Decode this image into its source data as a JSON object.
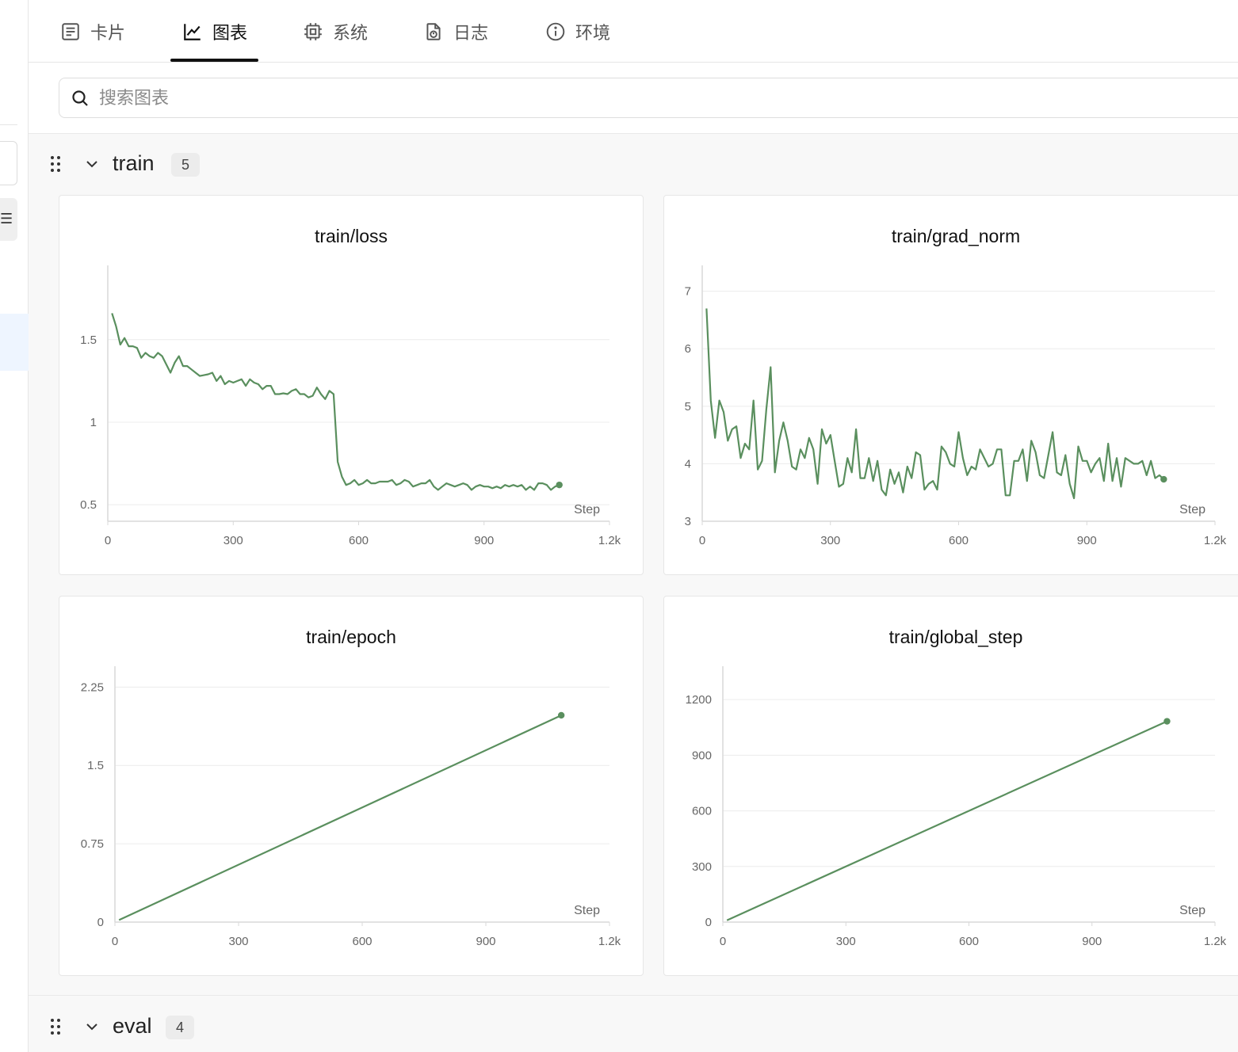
{
  "tabs": [
    {
      "label": "卡片",
      "icon": "card-icon"
    },
    {
      "label": "图表",
      "icon": "chart-icon",
      "active": true
    },
    {
      "label": "系统",
      "icon": "chip-icon"
    },
    {
      "label": "日志",
      "icon": "log-icon"
    },
    {
      "label": "环境",
      "icon": "info-icon"
    }
  ],
  "search": {
    "placeholder": "搜索图表"
  },
  "groups": [
    {
      "name": "train",
      "count": "5"
    },
    {
      "name": "eval",
      "count": "4"
    }
  ],
  "colors": {
    "line": "#5a8f5e",
    "grid": "#ececec",
    "axis": "#d9d9d9"
  },
  "chart_data": [
    {
      "type": "line",
      "title": "train/loss",
      "xlabel": "Step",
      "xlim": [
        0,
        1200
      ],
      "ylim": [
        0.4,
        1.95
      ],
      "xticks": [
        0,
        300,
        600,
        900,
        1200
      ],
      "xtick_labels": [
        "0",
        "300",
        "600",
        "900",
        "1.2k"
      ],
      "yticks": [
        0.5,
        1,
        1.5
      ],
      "ytick_labels": [
        "0.5",
        "1",
        "1.5"
      ],
      "series": [
        {
          "x": [
            10,
            20,
            30,
            40,
            50,
            60,
            70,
            80,
            90,
            100,
            110,
            120,
            130,
            140,
            150,
            160,
            170,
            180,
            190,
            200,
            210,
            220,
            230,
            240,
            250,
            260,
            270,
            280,
            290,
            300,
            310,
            320,
            330,
            340,
            350,
            360,
            370,
            380,
            390,
            400,
            410,
            420,
            430,
            440,
            450,
            460,
            470,
            480,
            490,
            500,
            510,
            520,
            530,
            540,
            550,
            560,
            570,
            580,
            590,
            600,
            610,
            620,
            630,
            640,
            650,
            660,
            670,
            680,
            690,
            700,
            710,
            720,
            730,
            740,
            750,
            760,
            770,
            780,
            790,
            800,
            810,
            820,
            830,
            840,
            850,
            860,
            870,
            880,
            890,
            900,
            910,
            920,
            930,
            940,
            950,
            960,
            970,
            980,
            990,
            1000,
            1010,
            1020,
            1030,
            1040,
            1050,
            1060,
            1070,
            1080
          ],
          "y": [
            1.66,
            1.58,
            1.47,
            1.51,
            1.46,
            1.46,
            1.45,
            1.39,
            1.42,
            1.4,
            1.39,
            1.42,
            1.4,
            1.35,
            1.3,
            1.36,
            1.4,
            1.34,
            1.34,
            1.32,
            1.3,
            1.28,
            1.285,
            1.29,
            1.3,
            1.25,
            1.28,
            1.23,
            1.25,
            1.24,
            1.25,
            1.26,
            1.22,
            1.26,
            1.24,
            1.23,
            1.2,
            1.22,
            1.22,
            1.17,
            1.17,
            1.175,
            1.17,
            1.19,
            1.2,
            1.17,
            1.17,
            1.15,
            1.16,
            1.21,
            1.17,
            1.14,
            1.19,
            1.17,
            0.76,
            0.67,
            0.62,
            0.63,
            0.65,
            0.62,
            0.63,
            0.65,
            0.63,
            0.63,
            0.64,
            0.64,
            0.64,
            0.65,
            0.62,
            0.63,
            0.65,
            0.64,
            0.61,
            0.62,
            0.63,
            0.63,
            0.65,
            0.61,
            0.59,
            0.61,
            0.63,
            0.62,
            0.61,
            0.62,
            0.63,
            0.62,
            0.59,
            0.61,
            0.62,
            0.61,
            0.61,
            0.6,
            0.61,
            0.6,
            0.62,
            0.61,
            0.62,
            0.61,
            0.62,
            0.59,
            0.61,
            0.59,
            0.63,
            0.63,
            0.62,
            0.59,
            0.61,
            0.62
          ]
        }
      ]
    },
    {
      "type": "line",
      "title": "train/grad_norm",
      "xlabel": "Step",
      "xlim": [
        0,
        1200
      ],
      "ylim": [
        3,
        7.45
      ],
      "xticks": [
        0,
        300,
        600,
        900,
        1200
      ],
      "xtick_labels": [
        "0",
        "300",
        "600",
        "900",
        "1.2k"
      ],
      "yticks": [
        3,
        4,
        5,
        6,
        7
      ],
      "ytick_labels": [
        "3",
        "4",
        "5",
        "6",
        "7"
      ],
      "series": [
        {
          "x": [
            10,
            20,
            30,
            40,
            50,
            60,
            70,
            80,
            90,
            100,
            110,
            120,
            130,
            140,
            150,
            160,
            170,
            180,
            190,
            200,
            210,
            220,
            230,
            240,
            250,
            260,
            270,
            280,
            290,
            300,
            310,
            320,
            330,
            340,
            350,
            360,
            370,
            380,
            390,
            400,
            410,
            420,
            430,
            440,
            450,
            460,
            470,
            480,
            490,
            500,
            510,
            520,
            530,
            540,
            550,
            560,
            570,
            580,
            590,
            600,
            610,
            620,
            630,
            640,
            650,
            660,
            670,
            680,
            690,
            700,
            710,
            720,
            730,
            740,
            750,
            760,
            770,
            780,
            790,
            800,
            810,
            820,
            830,
            840,
            850,
            860,
            870,
            880,
            890,
            900,
            910,
            920,
            930,
            940,
            950,
            960,
            970,
            980,
            990,
            1000,
            1010,
            1020,
            1030,
            1040,
            1050,
            1060,
            1070,
            1080
          ],
          "y": [
            6.7,
            5.1,
            4.45,
            5.1,
            4.9,
            4.4,
            4.6,
            4.65,
            4.1,
            4.35,
            4.25,
            5.1,
            3.9,
            4.05,
            4.95,
            5.68,
            3.85,
            4.4,
            4.72,
            4.4,
            3.95,
            3.9,
            4.25,
            4.1,
            4.45,
            4.25,
            3.65,
            4.6,
            4.35,
            4.5,
            4.05,
            3.6,
            3.65,
            4.1,
            3.85,
            4.6,
            3.75,
            3.75,
            4.1,
            3.7,
            4.05,
            3.55,
            3.45,
            3.9,
            3.65,
            3.85,
            3.5,
            3.95,
            3.75,
            4.2,
            4.15,
            3.55,
            3.65,
            3.7,
            3.55,
            4.3,
            4.2,
            4.0,
            3.95,
            4.55,
            4.1,
            3.8,
            3.95,
            3.9,
            4.25,
            4.1,
            3.95,
            4.0,
            4.25,
            4.25,
            3.45,
            3.45,
            4.05,
            4.05,
            4.25,
            3.7,
            4.4,
            4.2,
            3.8,
            3.75,
            4.15,
            4.55,
            3.85,
            3.8,
            4.15,
            3.65,
            3.4,
            4.3,
            4.05,
            4.05,
            3.85,
            4.0,
            4.1,
            3.7,
            4.35,
            3.7,
            4.1,
            3.6,
            4.1,
            4.05,
            4.0,
            4.0,
            4.05,
            3.8,
            4.05,
            3.75,
            3.8,
            3.73
          ]
        }
      ]
    },
    {
      "type": "line",
      "title": "train/epoch",
      "xlabel": "Step",
      "xlim": [
        0,
        1200
      ],
      "ylim": [
        0,
        2.45
      ],
      "xticks": [
        0,
        300,
        600,
        900,
        1200
      ],
      "xtick_labels": [
        "0",
        "300",
        "600",
        "900",
        "1.2k"
      ],
      "yticks": [
        0,
        0.75,
        1.5,
        2.25
      ],
      "ytick_labels": [
        "0",
        "0.75",
        "1.5",
        "2.25"
      ],
      "series": [
        {
          "x": [
            10,
            1083
          ],
          "y": [
            0.02,
            1.98
          ]
        }
      ]
    },
    {
      "type": "line",
      "title": "train/global_step",
      "xlabel": "Step",
      "xlim": [
        0,
        1200
      ],
      "ylim": [
        0,
        1380
      ],
      "xticks": [
        0,
        300,
        600,
        900,
        1200
      ],
      "xtick_labels": [
        "0",
        "300",
        "600",
        "900",
        "1.2k"
      ],
      "yticks": [
        0,
        300,
        600,
        900,
        1200
      ],
      "ytick_labels": [
        "0",
        "300",
        "600",
        "900",
        "1200"
      ],
      "series": [
        {
          "x": [
            10,
            1083
          ],
          "y": [
            10,
            1083
          ]
        }
      ]
    }
  ]
}
